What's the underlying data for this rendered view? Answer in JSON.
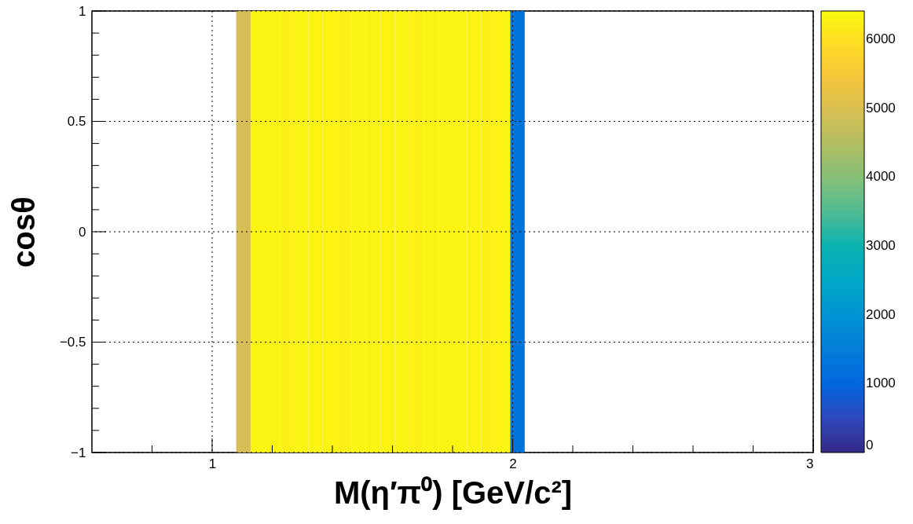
{
  "chart_data": {
    "type": "heatmap",
    "cells": [
      [
        null,
        null,
        null,
        null,
        null,
        null,
        null,
        null,
        null,
        null,
        4900,
        6300,
        6300,
        6250,
        6300,
        6300,
        6300,
        6250,
        6300,
        6300,
        6300,
        6300,
        6250,
        6300,
        6300,
        6300,
        6300,
        6250,
        6300,
        1300,
        null,
        null,
        null,
        null,
        null,
        null,
        null,
        null,
        null,
        null,
        null,
        null,
        null,
        null,
        null,
        null,
        null,
        null,
        null,
        null
      ]
    ],
    "xlabel": "M(η′π⁰) [GeV/c²]",
    "ylabel": "cosθ",
    "xlim": [
      0.6,
      3
    ],
    "ylim": [
      -1,
      1
    ],
    "xticks": [
      {
        "value": 0.8,
        "label": null
      },
      1,
      {
        "value": 1.2,
        "label": null
      },
      {
        "value": 1.4,
        "label": null
      },
      {
        "value": 1.6,
        "label": null
      },
      {
        "value": 1.8,
        "label": null
      },
      2,
      {
        "value": 2.2,
        "label": null
      },
      {
        "value": 2.4,
        "label": null
      },
      {
        "value": 2.6,
        "label": null
      },
      {
        "value": 2.8,
        "label": null
      },
      3
    ],
    "yticks": [
      {
        "value": -1,
        "label": "−1"
      },
      {
        "value": -0.9,
        "label": null
      },
      {
        "value": -0.8,
        "label": null
      },
      {
        "value": -0.7,
        "label": null
      },
      {
        "value": -0.6,
        "label": null
      },
      {
        "value": -0.5,
        "label": "−0.5"
      },
      {
        "value": -0.4,
        "label": null
      },
      {
        "value": -0.3,
        "label": null
      },
      {
        "value": -0.2,
        "label": null
      },
      {
        "value": -0.1,
        "label": null
      },
      0,
      {
        "value": 0.1,
        "label": null
      },
      {
        "value": 0.2,
        "label": null
      },
      {
        "value": 0.3,
        "label": null
      },
      {
        "value": 0.4,
        "label": null
      },
      0.5,
      {
        "value": 0.6,
        "label": null
      },
      {
        "value": 0.7,
        "label": null
      },
      {
        "value": 0.8,
        "label": null
      },
      {
        "value": 0.9,
        "label": null
      },
      1
    ],
    "clim": [
      0,
      6410
    ],
    "cticks": [
      0,
      1000,
      2000,
      3000,
      4000,
      5000,
      6000
    ],
    "grid": true
  }
}
